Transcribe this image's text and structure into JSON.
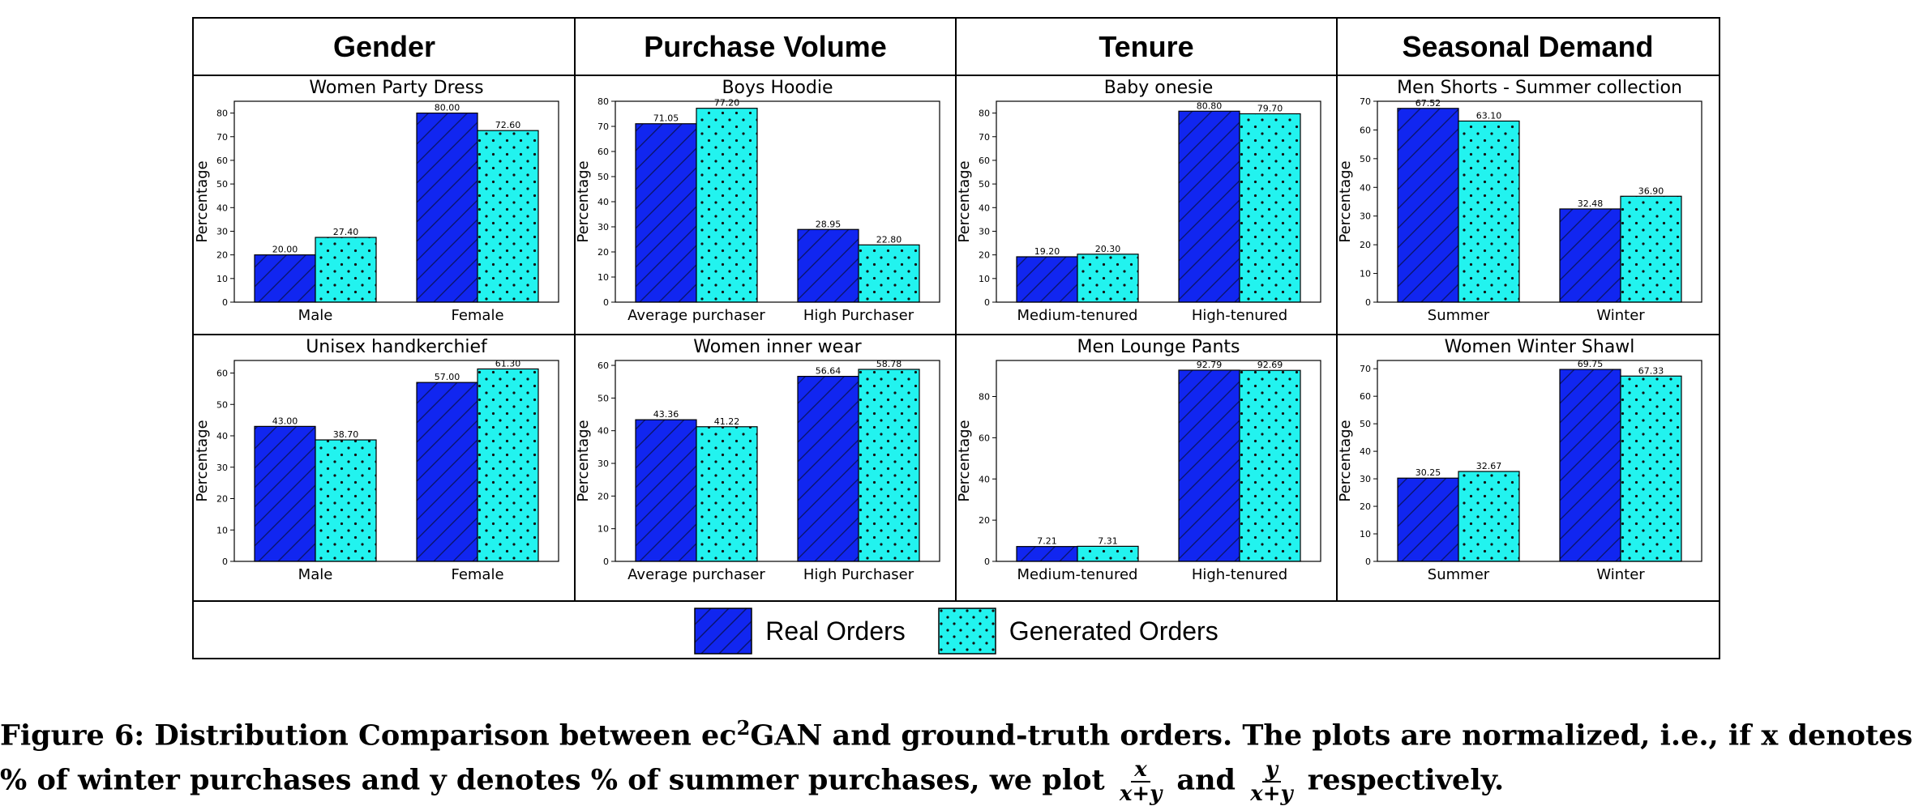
{
  "headers": [
    "Gender",
    "Purchase Volume",
    "Tenure",
    "Seasonal Demand"
  ],
  "legend": [
    "Real Orders",
    "Generated Orders"
  ],
  "colors": {
    "real": "#1126f0",
    "generated": "#22f3ef"
  },
  "caption": {
    "part1": "Figure 6: Distribution Comparison between ec",
    "sup": "2",
    "part2": "GAN and ground-truth orders. The plots are normalized, i.e., if x denotes % of winter purchases and y denotes % of summer purchases, we plot",
    "frac1_num": "x",
    "frac1_den": "x+y",
    "and": "and",
    "frac2_num": "y",
    "frac2_den": "x+y",
    "part3": "respectively."
  },
  "chart_data": [
    {
      "type": "bar",
      "title": "Women Party Dress",
      "ylabel": "Percentage",
      "categories": [
        "Male",
        "Female"
      ],
      "ylim": [
        0,
        85
      ],
      "yticks": [
        0,
        10,
        20,
        30,
        40,
        50,
        60,
        70,
        80
      ],
      "series": [
        {
          "name": "Real Orders",
          "values": [
            20.0,
            80.0
          ],
          "labels": [
            "20.00",
            "80.00"
          ]
        },
        {
          "name": "Generated Orders",
          "values": [
            27.4,
            72.6
          ],
          "labels": [
            "27.40",
            "72.60"
          ]
        }
      ]
    },
    {
      "type": "bar",
      "title": "Boys Hoodie",
      "ylabel": "Percentage",
      "categories": [
        "Average purchaser",
        "High Purchaser"
      ],
      "ylim": [
        0,
        80
      ],
      "yticks": [
        0,
        10,
        20,
        30,
        40,
        50,
        60,
        70,
        80
      ],
      "series": [
        {
          "name": "Real Orders",
          "values": [
            71.05,
            28.95
          ],
          "labels": [
            "71.05",
            "28.95"
          ]
        },
        {
          "name": "Generated Orders",
          "values": [
            77.2,
            22.8
          ],
          "labels": [
            "77.20",
            "22.80"
          ]
        }
      ]
    },
    {
      "type": "bar",
      "title": "Baby onesie",
      "ylabel": "Percentage",
      "categories": [
        "Medium-tenured",
        "High-tenured"
      ],
      "ylim": [
        0,
        85
      ],
      "yticks": [
        0,
        10,
        20,
        30,
        40,
        50,
        60,
        70,
        80
      ],
      "series": [
        {
          "name": "Real Orders",
          "values": [
            19.2,
            80.8
          ],
          "labels": [
            "19.20",
            "80.80"
          ]
        },
        {
          "name": "Generated Orders",
          "values": [
            20.3,
            79.7
          ],
          "labels": [
            "20.30",
            "79.70"
          ]
        }
      ]
    },
    {
      "type": "bar",
      "title": "Men Shorts - Summer collection",
      "ylabel": "Percentage",
      "categories": [
        "Summer",
        "Winter"
      ],
      "ylim": [
        0,
        70
      ],
      "yticks": [
        0,
        10,
        20,
        30,
        40,
        50,
        60,
        70
      ],
      "series": [
        {
          "name": "Real Orders",
          "values": [
            67.52,
            32.48
          ],
          "labels": [
            "67.52",
            "32.48"
          ]
        },
        {
          "name": "Generated Orders",
          "values": [
            63.1,
            36.9
          ],
          "labels": [
            "63.10",
            "36.90"
          ]
        }
      ]
    },
    {
      "type": "bar",
      "title": "Unisex handkerchief",
      "ylabel": "Percentage",
      "categories": [
        "Male",
        "Female"
      ],
      "ylim": [
        0,
        64
      ],
      "yticks": [
        0,
        10,
        20,
        30,
        40,
        50,
        60
      ],
      "series": [
        {
          "name": "Real Orders",
          "values": [
            43.0,
            57.0
          ],
          "labels": [
            "43.00",
            "57.00"
          ]
        },
        {
          "name": "Generated Orders",
          "values": [
            38.7,
            61.3
          ],
          "labels": [
            "38.70",
            "61.30"
          ]
        }
      ]
    },
    {
      "type": "bar",
      "title": "Women inner wear",
      "ylabel": "Percentage",
      "categories": [
        "Average purchaser",
        "High Purchaser"
      ],
      "ylim": [
        0,
        61.5
      ],
      "yticks": [
        0,
        10,
        20,
        30,
        40,
        50,
        60
      ],
      "series": [
        {
          "name": "Real Orders",
          "values": [
            43.36,
            56.64
          ],
          "labels": [
            "43.36",
            "56.64"
          ]
        },
        {
          "name": "Generated Orders",
          "values": [
            41.22,
            58.78
          ],
          "labels": [
            "41.22",
            "58.78"
          ]
        }
      ]
    },
    {
      "type": "bar",
      "title": "Men Lounge Pants",
      "ylabel": "Percentage",
      "categories": [
        "Medium-tenured",
        "High-tenured"
      ],
      "ylim": [
        0,
        97.5
      ],
      "yticks": [
        0,
        20,
        40,
        60,
        80
      ],
      "series": [
        {
          "name": "Real Orders",
          "values": [
            7.21,
            92.79
          ],
          "labels": [
            "7.21",
            "92.79"
          ]
        },
        {
          "name": "Generated Orders",
          "values": [
            7.31,
            92.69
          ],
          "labels": [
            "7.31",
            "92.69"
          ]
        }
      ]
    },
    {
      "type": "bar",
      "title": "Women Winter Shawl",
      "ylabel": "Percentage",
      "categories": [
        "Summer",
        "Winter"
      ],
      "ylim": [
        0,
        73
      ],
      "yticks": [
        0,
        10,
        20,
        30,
        40,
        50,
        60,
        70
      ],
      "series": [
        {
          "name": "Real Orders",
          "values": [
            30.25,
            69.75
          ],
          "labels": [
            "30.25",
            "69.75"
          ]
        },
        {
          "name": "Generated Orders",
          "values": [
            32.67,
            67.33
          ],
          "labels": [
            "32.67",
            "67.33"
          ]
        }
      ]
    }
  ]
}
